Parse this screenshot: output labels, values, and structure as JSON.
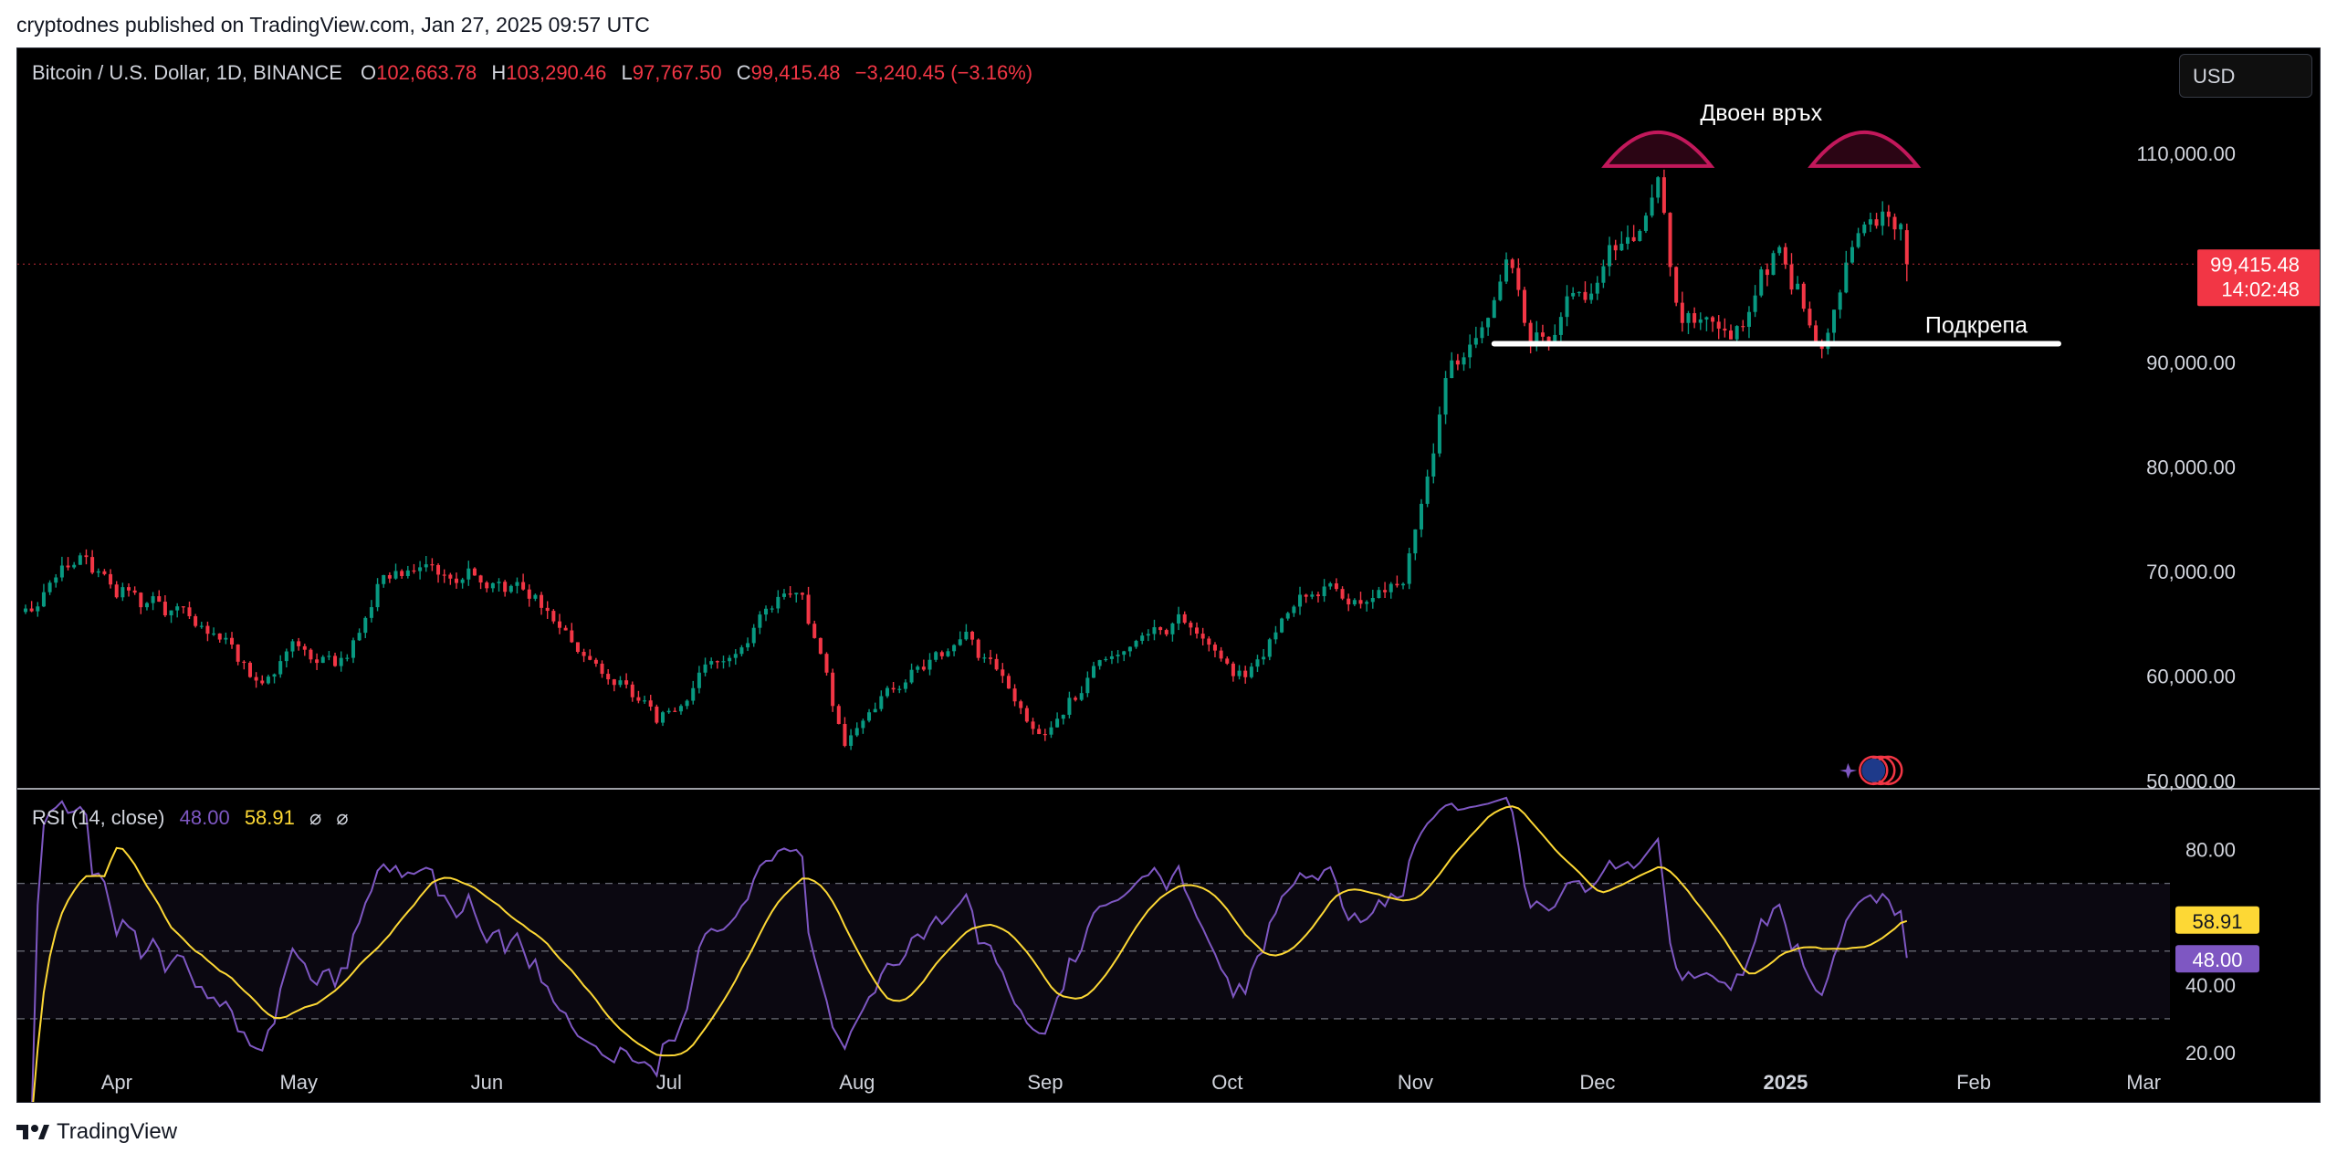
{
  "caption": "cryptodnes published on TradingView.com, Jan 27, 2025 09:57 UTC",
  "brand": {
    "name": "TradingView",
    "logo_icon": "tradingview-logo-icon"
  },
  "header": {
    "symbol": "Bitcoin / U.S. Dollar, 1D, BINANCE",
    "o_label": "O",
    "o_value": "102,663.78",
    "h_label": "H",
    "h_value": "103,290.46",
    "l_label": "L",
    "l_value": "97,767.50",
    "c_label": "C",
    "c_value": "99,415.48",
    "change": "−3,240.45 (−3.16%)",
    "currency": "USD"
  },
  "price_axis": {
    "ticks": [
      "110,000.00",
      "90,000.00",
      "80,000.00",
      "70,000.00",
      "60,000.00",
      "50,000.00"
    ],
    "last_price": "99,415.48",
    "countdown": "14:02:48"
  },
  "annotations": {
    "double_top": "Двоен връх",
    "support": "Подкрепа"
  },
  "rsi": {
    "title": "RSI (14, close)",
    "value": "48.00",
    "ma_value": "58.91",
    "icons": [
      "⌀",
      "⌀"
    ],
    "ticks": [
      "80.00",
      "40.00",
      "20.00"
    ]
  },
  "time_axis": [
    "Apr",
    "May",
    "Jun",
    "Jul",
    "Aug",
    "Sep",
    "Oct",
    "Nov",
    "Dec",
    "2025",
    "Feb",
    "Mar"
  ],
  "colors": {
    "up": "#089981",
    "down": "#f23645",
    "rsi": "#7e57c2",
    "rsi_ma": "#fdd835",
    "annotation": "#c2185b"
  },
  "chart_data": {
    "type": "candlestick",
    "symbol": "BTCUSD",
    "interval": "1D",
    "ylim": [
      49500,
      113500
    ],
    "x_range": [
      "2024-03-23",
      "2025-03-10"
    ],
    "waypoints": [
      [
        "2024-03-23",
        67000
      ],
      [
        "2024-04-01",
        70500
      ],
      [
        "2024-04-12",
        67000
      ],
      [
        "2024-04-25",
        64000
      ],
      [
        "2024-05-01",
        59000
      ],
      [
        "2024-05-07",
        63000
      ],
      [
        "2024-05-15",
        61500
      ],
      [
        "2024-05-21",
        70000
      ],
      [
        "2024-06-05",
        70500
      ],
      [
        "2024-06-20",
        65000
      ],
      [
        "2024-07-05",
        55500
      ],
      [
        "2024-07-15",
        62000
      ],
      [
        "2024-07-29",
        68000
      ],
      [
        "2024-08-05",
        53000
      ],
      [
        "2024-08-12",
        59000
      ],
      [
        "2024-08-25",
        64000
      ],
      [
        "2024-09-06",
        54500
      ],
      [
        "2024-09-20",
        63000
      ],
      [
        "2024-09-29",
        65500
      ],
      [
        "2024-10-10",
        60000
      ],
      [
        "2024-10-20",
        68000
      ],
      [
        "2024-11-05",
        68000
      ],
      [
        "2024-11-12",
        88000
      ],
      [
        "2024-11-22",
        98500
      ],
      [
        "2024-11-26",
        92000
      ],
      [
        "2024-12-05",
        97000
      ],
      [
        "2024-12-17",
        106000
      ],
      [
        "2024-12-20",
        94000
      ],
      [
        "2024-12-30",
        92500
      ],
      [
        "2025-01-06",
        101500
      ],
      [
        "2025-01-13",
        91500
      ],
      [
        "2025-01-20",
        104000
      ],
      [
        "2025-01-24",
        104700
      ],
      [
        "2025-01-26",
        102600
      ],
      [
        "2025-01-27",
        99415
      ]
    ],
    "last_candle": {
      "date": "2025-01-27",
      "open": 102663.78,
      "high": 103290.46,
      "low": 97767.5,
      "close": 99415.48
    },
    "rsi_period": 14,
    "rsi_last": 48.0,
    "rsi_ma_last": 58.91,
    "rsi_bands": [
      70,
      50,
      30
    ],
    "rsi_ylim": [
      20,
      88
    ],
    "support_level": 91800,
    "support_range": [
      "2024-11-20",
      "2025-02-21"
    ],
    "double_top_dates": [
      "2024-12-17",
      "2025-01-20"
    ]
  }
}
